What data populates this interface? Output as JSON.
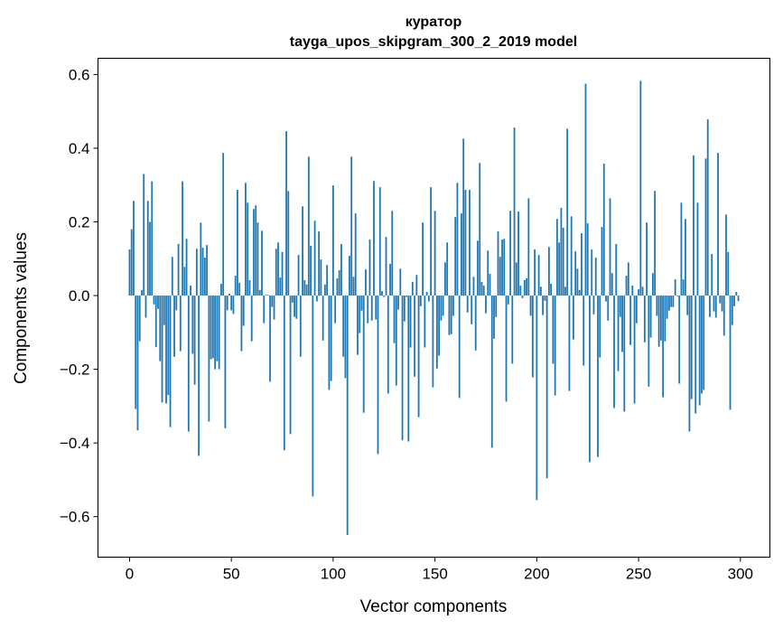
{
  "chart_data": {
    "type": "bar",
    "title_lines": [
      "куратор",
      "tayga_upos_skipgram_300_2_2019 model"
    ],
    "xlabel": "Vector components",
    "ylabel": "Components values",
    "xlim": [
      -15.5,
      314.5
    ],
    "ylim": [
      -0.71,
      0.644
    ],
    "xticks": [
      0,
      50,
      100,
      150,
      200,
      250,
      300
    ],
    "xtick_labels": [
      "0",
      "50",
      "100",
      "150",
      "200",
      "250",
      "300"
    ],
    "yticks": [
      -0.6,
      -0.4,
      -0.2,
      0.0,
      0.2,
      0.4,
      0.6
    ],
    "ytick_labels": [
      "−0.6",
      "−0.4",
      "−0.2",
      "0.0",
      "0.2",
      "0.4",
      "0.6"
    ],
    "grid": false,
    "bar_color": "#1f77b4",
    "bar_width": 0.8,
    "values": [
      0.125,
      0.18,
      0.257,
      -0.308,
      -0.366,
      -0.124,
      0.015,
      0.33,
      -0.06,
      0.257,
      0.2,
      0.31,
      -0.024,
      -0.14,
      -0.036,
      -0.178,
      -0.29,
      -0.08,
      -0.293,
      -0.27,
      -0.357,
      0.105,
      -0.166,
      -0.04,
      0.14,
      -0.151,
      0.31,
      0.078,
      0.154,
      -0.369,
      0.027,
      -0.158,
      -0.242,
      0.127,
      -0.435,
      0.198,
      0.13,
      0.103,
      0.137,
      -0.342,
      -0.173,
      -0.17,
      -0.2,
      -0.178,
      -0.2,
      0.032,
      0.387,
      -0.36,
      -0.04,
      0.005,
      -0.04,
      -0.05,
      0.054,
      0.287,
      0.034,
      -0.151,
      -0.082,
      0.306,
      0.252,
      0.042,
      -0.124,
      0.235,
      0.245,
      0.198,
      0.015,
      0.176,
      -0.075,
      0.002,
      0.002,
      -0.234,
      -0.031,
      -0.065,
      0.127,
      0.144,
      0.049,
      0.118,
      -0.42,
      0.446,
      0.284,
      -0.376,
      -0.019,
      -0.058,
      -0.063,
      0.11,
      -0.166,
      0.242,
      0.042,
      0.03,
      0.377,
      0.135,
      -0.545,
      0.203,
      -0.016,
      0.174,
      0.098,
      -0.122,
      0.03,
      0.083,
      -0.256,
      -0.232,
      0.299,
      -0.075,
      0.047,
      0.069,
      0.14,
      -0.166,
      -0.224,
      -0.65,
      0.108,
      0.377,
      0.051,
      0.223,
      -0.161,
      -0.102,
      -0.041,
      -0.318,
      0.071,
      -0.075,
      0.152,
      -0.068,
      0.311,
      -0.065,
      -0.43,
      0.294,
      0.012,
      -0.004,
      0.159,
      -0.266,
      0.086,
      0.23,
      -0.129,
      -0.244,
      -0.038,
      0.073,
      -0.393,
      -0.07,
      -0.004,
      -0.396,
      -0.141,
      0.037,
      -0.22,
      0.056,
      -0.33,
      -0.029,
      0.198,
      -0.141,
      0.01,
      -0.016,
      0.294,
      -0.249,
      0.23,
      -0.198,
      -0.163,
      -0.068,
      -0.055,
      0.09,
      0.144,
      -0.107,
      -0.105,
      -0.055,
      0.213,
      0.306,
      -0.278,
      0.223,
      0.426,
      0.287,
      -0.046,
      0.287,
      -0.078,
      0.051,
      -0.149,
      0.149,
      0.36,
      0.037,
      0.027,
      -0.048,
      0.122,
      0.059,
      -0.413,
      -0.117,
      -0.058,
      0.174,
      0.105,
      0.152,
      0.154,
      -0.288,
      -0.024,
      0.23,
      -0.185,
      0.456,
      0.09,
      0.228,
      0.027,
      -0.007,
      0.042,
      0.047,
      0.264,
      -0.055,
      -0.222,
      0.125,
      -0.555,
      0.11,
      0.024,
      -0.053,
      -0.014,
      -0.496,
      0.132,
      0.032,
      -0.185,
      -0.271,
      0.208,
      0.144,
      0.238,
      0.184,
      0.024,
      0.453,
      -0.259,
      0.215,
      -0.119,
      0.12,
      0.073,
      0.015,
      0.169,
      -0.19,
      0.575,
      0.196,
      -0.452,
      0.125,
      -0.051,
      0.103,
      -0.438,
      -0.168,
      0.186,
      0.358,
      -0.016,
      -0.068,
      0.264,
      0.061,
      -0.305,
      0.14,
      -0.205,
      -0.058,
      -0.153,
      -0.315,
      0.054,
      0.09,
      -0.134,
      0.027,
      -0.293,
      -0.075,
      0.017,
      0.583,
      0.024,
      -0.127,
      0.198,
      -0.247,
      -0.114,
      0.061,
      0.284,
      -0.055,
      -0.139,
      -0.122,
      -0.276,
      -0.124,
      -0.063,
      -0.041,
      -0.031,
      -0.031,
      0.044,
      -0.002,
      -0.239,
      0.252,
      0.044,
      0.208,
      -0.053,
      -0.369,
      -0.281,
      0.38,
      -0.32,
      0.252,
      -0.298,
      -0.266,
      -0.256,
      0.372,
      0.478,
      -0.058,
      0.113,
      -0.043,
      -0.06,
      0.387,
      -0.021,
      -0.043,
      -0.109,
      0.22,
      0.118,
      -0.31,
      -0.08,
      -0.029,
      0.01,
      -0.015
    ]
  }
}
